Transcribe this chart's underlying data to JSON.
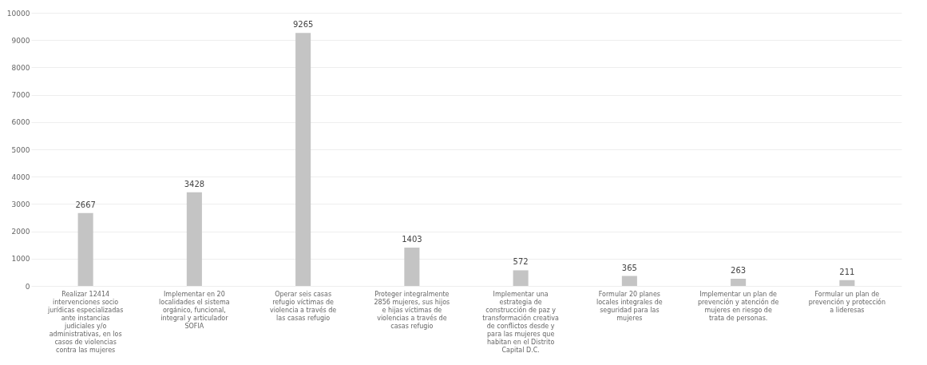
{
  "chart_data": {
    "type": "bar",
    "categories": [
      "Realizar 12414 intervenciones socio jurídicas especializadas ante instancias judiciales y/o administrativas, en los casos de violencias contra las mujeres",
      "Implementar en 20 localidades el sistema orgánico, funcional, integral y articulador SOFIA",
      "Operar seis casas refugio víctimas de violencia a través de las casas refugio",
      "Proteger integralmente 2856 mujeres, sus hijos e hijas víctimas de violencias a través de casas refugio",
      "Implementar una estrategia de construcción de paz y transformación creativa de conflictos desde y para las mujeres que habitan en el Distrito Capital D.C.",
      "Formular 20 planes locales integrales de seguridad para las mujeres",
      "Implementar un plan de prevención y atención de mujeres en riesgo de trata de personas.",
      "Formular un plan de prevención y protección a lideresas"
    ],
    "values": [
      2667,
      3428,
      9265,
      1403,
      572,
      365,
      263,
      211
    ],
    "color": "#c4c4c4",
    "ylim": [
      0,
      10000
    ],
    "yticks": [
      0,
      1000,
      2000,
      3000,
      4000,
      5000,
      6000,
      7000,
      8000,
      9000,
      10000
    ],
    "grid": "y",
    "data_labels": true
  }
}
